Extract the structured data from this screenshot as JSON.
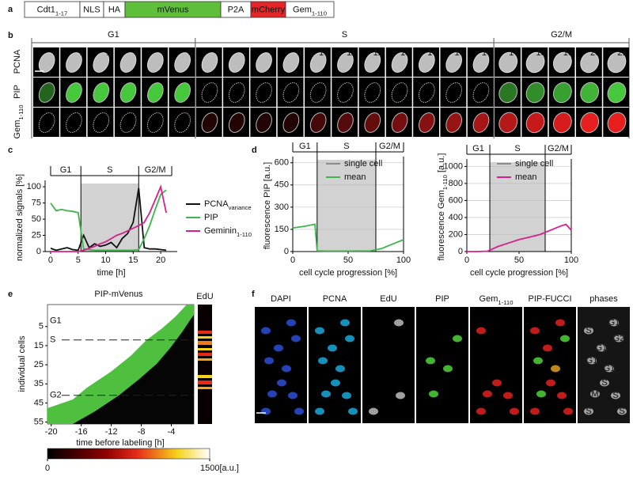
{
  "panel_labels": [
    "a",
    "b",
    "c",
    "d",
    "e",
    "f"
  ],
  "construct": [
    {
      "text": "Cdt1",
      "sub": "1-17",
      "color": "#ffffff"
    },
    {
      "text": "NLS",
      "color": "#ffffff"
    },
    {
      "text": "HA",
      "color": "#ffffff"
    },
    {
      "text": "mVenus",
      "color": "#5fbf3a"
    },
    {
      "text": "P2A",
      "color": "#ffffff"
    },
    {
      "text": "mCherry",
      "color": "#e52528"
    },
    {
      "text": "Gem",
      "sub": "1-110",
      "color": "#ffffff"
    }
  ],
  "timelapse": {
    "phases": [
      "G1",
      "S",
      "G2/M"
    ],
    "rows": [
      {
        "text": "PCNA"
      },
      {
        "text": "PIP"
      },
      {
        "text": "Gem",
        "sub": "1-110"
      }
    ],
    "frames": [
      0,
      1,
      2,
      3,
      4,
      5,
      6,
      7,
      8,
      9,
      10,
      11,
      12,
      13,
      14,
      15,
      16,
      17,
      18,
      19,
      20,
      21
    ]
  },
  "chart_data": [
    {
      "type": "line",
      "ylabel": "normalized signals [%]",
      "xlabel": "time [h]",
      "xlim": [
        -1,
        23
      ],
      "ylim": [
        0,
        105
      ],
      "xticks": [
        0,
        5,
        10,
        15,
        20
      ],
      "yticks": [
        0,
        25,
        50,
        75,
        100
      ],
      "grid": false,
      "phases": [
        "G1",
        "S",
        "G2/M"
      ],
      "phase_bounds": [
        0,
        5.5,
        16,
        22
      ],
      "x": [
        0,
        1,
        2,
        3,
        4,
        5,
        6,
        7,
        8,
        9,
        10,
        11,
        12,
        13,
        14,
        15,
        16,
        17,
        18,
        19,
        20,
        21
      ],
      "series": [
        {
          "name": "PCNA",
          "name_sub": "variance",
          "color": "#111111",
          "values": [
            5,
            2,
            4,
            6,
            3,
            2,
            25,
            6,
            12,
            8,
            10,
            14,
            6,
            20,
            28,
            45,
            98,
            6,
            4,
            4,
            3,
            2
          ]
        },
        {
          "name": "PIP",
          "color": "#3cb54a",
          "values": [
            75,
            63,
            65,
            63,
            62,
            60,
            4,
            3,
            2,
            2,
            2,
            2,
            2,
            2,
            2,
            2,
            3,
            20,
            40,
            65,
            88,
            95
          ]
        },
        {
          "name": "Geminin",
          "name_sub": "1-110",
          "color": "#d61f8c",
          "values": [
            0,
            0,
            0,
            0,
            0,
            0,
            2,
            5,
            8,
            12,
            15,
            20,
            25,
            28,
            32,
            36,
            40,
            45,
            60,
            80,
            100,
            60
          ]
        }
      ]
    },
    {
      "type": "line",
      "ylabel": "fluorescence PIP [a.u.]",
      "xlabel": "cell cycle progression [%]",
      "xlim": [
        0,
        100
      ],
      "ylim": [
        0,
        620
      ],
      "xticks": [
        0,
        50,
        100
      ],
      "yticks": [
        0,
        150,
        300,
        450,
        600
      ],
      "grid": true,
      "phases": [
        "G1",
        "S",
        "G2/M"
      ],
      "phase_bounds": [
        0,
        22,
        75,
        100
      ],
      "series": [
        {
          "name": "single cell",
          "color": "#8c8c8c"
        },
        {
          "name": "mean",
          "color": "#3cb54a",
          "x": [
            0,
            10,
            20,
            22,
            30,
            50,
            70,
            80,
            90,
            100
          ],
          "values": [
            160,
            170,
            185,
            5,
            3,
            3,
            5,
            20,
            50,
            80
          ]
        }
      ]
    },
    {
      "type": "line",
      "ylabel": "fluorescence Gem",
      "ylabel_sub": "1-110",
      "ylabel_end": " [a.u.]",
      "xlabel": "cell cycle progression [%]",
      "xlim": [
        0,
        100
      ],
      "ylim": [
        0,
        1050
      ],
      "xticks": [
        0,
        50,
        100
      ],
      "yticks": [
        0,
        200,
        400,
        600,
        800,
        1000
      ],
      "grid": true,
      "phases": [
        "G1",
        "S",
        "G2/M"
      ],
      "phase_bounds": [
        0,
        22,
        75,
        100
      ],
      "series": [
        {
          "name": "single cell",
          "color": "#8c8c8c"
        },
        {
          "name": "mean",
          "color": "#d61f8c",
          "x": [
            0,
            10,
            20,
            30,
            40,
            50,
            60,
            70,
            80,
            90,
            95,
            100
          ],
          "values": [
            0,
            0,
            5,
            60,
            100,
            140,
            170,
            200,
            250,
            300,
            320,
            250
          ]
        }
      ]
    },
    {
      "type": "heatmap",
      "title": "PIP-mVenus",
      "side_title": "EdU",
      "xlabel": "time before labeling [h]",
      "ylabel": "individual cells",
      "xlim": [
        -20.5,
        -1
      ],
      "ylim": [
        -6.5,
        56
      ],
      "xticks": [
        -20,
        -16,
        -12,
        -8,
        -4
      ],
      "yticks": [
        5,
        15,
        25,
        35,
        45,
        55
      ],
      "row_labels": [
        "G1",
        "S",
        "G2"
      ],
      "row_label_rows": [
        2,
        12,
        41
      ],
      "colorbar": {
        "lim": [
          0,
          1500
        ],
        "ticks": [
          0,
          {
            "value": 1500,
            "label": "1500[a.u.]"
          }
        ]
      }
    }
  ],
  "staining": {
    "channels": [
      {
        "text": "DAPI"
      },
      {
        "text": "PCNA"
      },
      {
        "text": "EdU"
      },
      {
        "text": "PIP"
      },
      {
        "text": "Gem",
        "sub": "1-110"
      },
      {
        "text": "PIP-FUCCI"
      },
      {
        "text": "phases"
      }
    ],
    "phase_marks": [
      "S",
      "G1",
      "G1",
      "G1",
      "G2",
      "G1",
      "M",
      "S",
      "S",
      "S",
      "S"
    ]
  }
}
